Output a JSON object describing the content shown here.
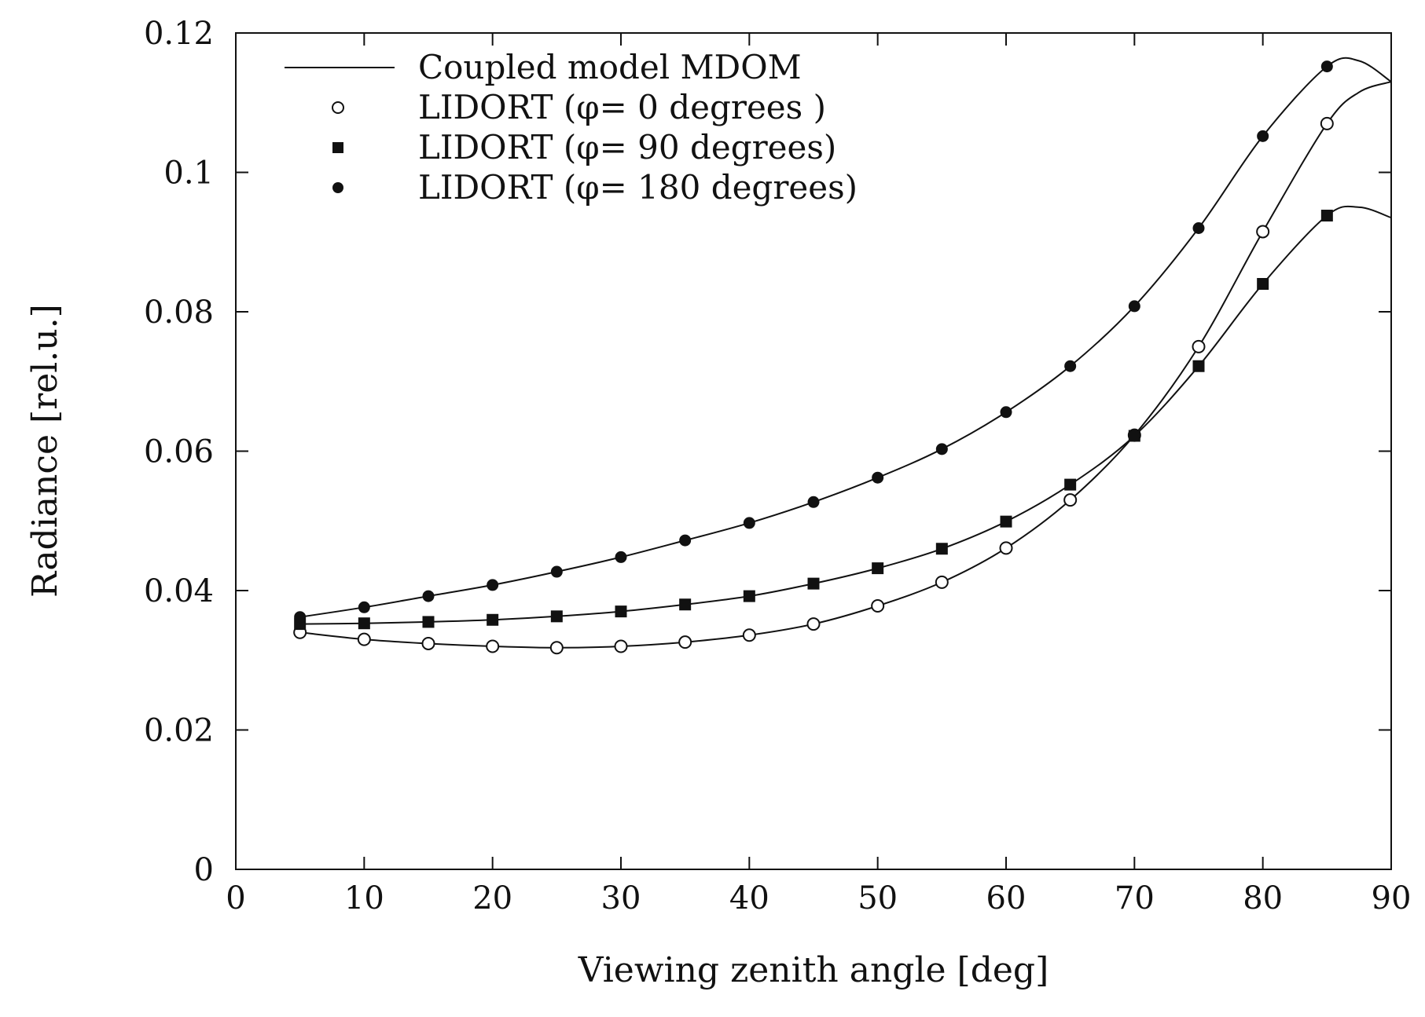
{
  "chart_data": {
    "type": "line",
    "title": "",
    "xlabel": "Viewing zenith angle [deg]",
    "ylabel": "Radiance [rel.u.]",
    "xlim": [
      0,
      90
    ],
    "ylim": [
      0,
      0.12
    ],
    "xticks": [
      "0",
      "10",
      "20",
      "30",
      "40",
      "50",
      "60",
      "70",
      "80",
      "90"
    ],
    "yticks": [
      "0",
      "0.02",
      "0.04",
      "0.06",
      "0.08",
      "0.1",
      "0.12"
    ],
    "grid": false,
    "legend_position": "top-left",
    "x": [
      5,
      10,
      15,
      20,
      25,
      30,
      35,
      40,
      45,
      50,
      55,
      60,
      65,
      70,
      75,
      80,
      85
    ],
    "series": [
      {
        "name": "LIDORT (φ= 0 degrees )",
        "marker": "open-circle",
        "values": [
          0.034,
          0.033,
          0.0324,
          0.032,
          0.0318,
          0.032,
          0.0326,
          0.0336,
          0.0352,
          0.0378,
          0.0412,
          0.0461,
          0.053,
          0.0623,
          0.075,
          0.0915,
          0.107
        ]
      },
      {
        "name": "LIDORT (φ= 90 degrees)",
        "marker": "filled-square",
        "values": [
          0.0352,
          0.0353,
          0.0355,
          0.0358,
          0.0363,
          0.037,
          0.038,
          0.0392,
          0.041,
          0.0432,
          0.046,
          0.0499,
          0.0552,
          0.0622,
          0.0722,
          0.084,
          0.0938
        ]
      },
      {
        "name": "LIDORT (φ= 180 degrees)",
        "marker": "filled-circle",
        "values": [
          0.0362,
          0.0376,
          0.0392,
          0.0408,
          0.0427,
          0.0448,
          0.0472,
          0.0497,
          0.0527,
          0.0562,
          0.0603,
          0.0656,
          0.0722,
          0.0808,
          0.092,
          0.1052,
          0.1152
        ]
      }
    ],
    "model_lines": [
      {
        "name": "Coupled model MDOM",
        "x": [
          5,
          10,
          15,
          20,
          25,
          30,
          35,
          40,
          45,
          50,
          55,
          60,
          65,
          70,
          75,
          80,
          85,
          87.5,
          90
        ],
        "series_values": [
          [
            0.034,
            0.033,
            0.0324,
            0.032,
            0.0318,
            0.032,
            0.0326,
            0.0336,
            0.0352,
            0.0378,
            0.0412,
            0.0461,
            0.053,
            0.0623,
            0.075,
            0.0915,
            0.107,
            0.1115,
            0.113
          ],
          [
            0.0352,
            0.0353,
            0.0355,
            0.0358,
            0.0363,
            0.037,
            0.038,
            0.0392,
            0.041,
            0.0432,
            0.046,
            0.0499,
            0.0552,
            0.0622,
            0.0722,
            0.084,
            0.0938,
            0.095,
            0.0935
          ],
          [
            0.0362,
            0.0376,
            0.0392,
            0.0408,
            0.0427,
            0.0448,
            0.0472,
            0.0497,
            0.0527,
            0.0562,
            0.0603,
            0.0656,
            0.0722,
            0.0808,
            0.092,
            0.1052,
            0.1152,
            0.116,
            0.113
          ]
        ]
      }
    ],
    "legend": [
      {
        "label": "Coupled model MDOM",
        "symbol": "line"
      },
      {
        "label": "LIDORT (φ= 0 degrees )",
        "symbol": "open-circle"
      },
      {
        "label": "LIDORT (φ= 90 degrees)",
        "symbol": "filled-square"
      },
      {
        "label": "LIDORT (φ= 180 degrees)",
        "symbol": "filled-circle"
      }
    ]
  }
}
